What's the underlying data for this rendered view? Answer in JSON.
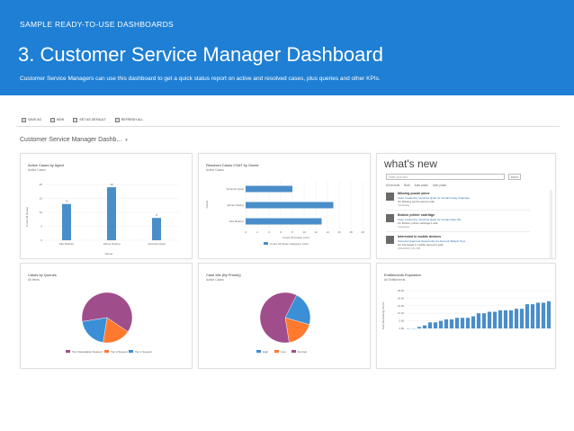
{
  "banner": {
    "eyebrow": "SAMPLE READY-TO-USE DASHBOARDS",
    "title": "3. Customer Service Manager Dashboard",
    "subtitle": "Customer Service Managers can use this dashboard to get a quick status report on active and resolved cases, plus queries and other KPIs."
  },
  "colors": {
    "banner": "#1e7fd4",
    "bar": "#4a8ec9",
    "tier2": "#ff7a2e",
    "tier3": "#a04d8c",
    "tier1": "#3b8fd6",
    "high": "#3b8fd6",
    "low": "#ff7a2e",
    "normal": "#a04d8c"
  },
  "toolbar": {
    "items": [
      {
        "label": "SAVE AS",
        "icon": "save-icon"
      },
      {
        "label": "NEW",
        "icon": "new-icon"
      },
      {
        "label": "SET AS DEFAULT",
        "icon": "default-icon"
      },
      {
        "label": "REFRESH ALL",
        "icon": "refresh-icon"
      }
    ]
  },
  "dashboard": {
    "title": "Customer Service Manager Dashb...",
    "caret": "▾"
  },
  "charts": {
    "agent": {
      "title": "Active Cases by Agent",
      "subtitle": "Active Cases",
      "ylabel": "Count:All (Case)",
      "xlabel": "Owner",
      "categories": [
        "Alitc Bellvier",
        "Jahnie Nuiting",
        "Veronica Quek"
      ],
      "values": [
        13,
        19,
        8
      ],
      "ylim": [
        0,
        20
      ],
      "yticks": [
        "20",
        "15",
        "10",
        "5",
        "0"
      ]
    },
    "resolved": {
      "title": "Resolved Cases CSAT by Owner",
      "subtitle": "Active Cases",
      "ylabel": "Owner",
      "xlabel": "Count:All (Case) (min)",
      "categories": [
        "Veronica Quek",
        "Jahnie Nuiting",
        "Alitc Bellvier"
      ],
      "values": [
        8,
        15,
        13
      ],
      "xlim": [
        0,
        20
      ],
      "xticks": [
        "0",
        "2",
        "4",
        "6",
        "8",
        "10",
        "12",
        "14",
        "16",
        "18",
        "20"
      ],
      "legend": "Count:All (Case Category) (min)"
    },
    "queues": {
      "title": "Cases by Queues",
      "subtitle": "All Items",
      "legend": [
        "Tier 3 Escalation Support",
        "Tier 2 Support",
        "Tier 1 Support"
      ]
    },
    "priority": {
      "title": "Case Mix (By Priority)",
      "subtitle": "Active Cases",
      "legend": [
        "High",
        "Low",
        "Normal"
      ]
    },
    "entitlements": {
      "title": "Entitlements Expiration",
      "subtitle": "All Entitlements",
      "ylabel": "Sum:Remaining Terms",
      "yticks": [
        "25.00",
        "20.00",
        "15.00",
        "10.00",
        "5.00",
        "0.00"
      ],
      "ylim": [
        0,
        25
      ]
    }
  },
  "chart_data": [
    {
      "type": "bar",
      "title": "Active Cases by Agent",
      "categories": [
        "Alitc Bellvier",
        "Jahnie Nuiting",
        "Veronica Quek"
      ],
      "values": [
        13,
        19,
        8
      ],
      "ylim": [
        0,
        20
      ]
    },
    {
      "type": "bar",
      "title": "Resolved Cases CSAT by Owner",
      "categories": [
        "Veronica Quek",
        "Jahnie Nuiting",
        "Alitc Bellvier"
      ],
      "values": [
        8,
        15,
        13
      ],
      "xlim": [
        0,
        20
      ]
    },
    {
      "type": "pie",
      "title": "Cases by Queues",
      "categories": [
        "Tier 3 Escalation Support",
        "Tier 2 Support",
        "Tier 1 Support"
      ],
      "values": [
        62,
        18,
        20
      ]
    },
    {
      "type": "pie",
      "title": "Case Mix (By Priority)",
      "categories": [
        "High",
        "Low",
        "Normal"
      ],
      "values": [
        22,
        18,
        60
      ]
    },
    {
      "type": "bar",
      "title": "Entitlements Expiration",
      "values": [
        0,
        0,
        1,
        2,
        4,
        4,
        5,
        6,
        6,
        7,
        7,
        7,
        8,
        10,
        10,
        11,
        11,
        12,
        12,
        12,
        13,
        13,
        16,
        16,
        17,
        17,
        18
      ],
      "ylim": [
        0,
        25
      ]
    }
  ],
  "whats_new": {
    "title": "what's new",
    "search_placeholder": "Enter your text",
    "post_label": "POST",
    "filters": [
      "All records",
      "Both",
      "Auto posts",
      "User posts"
    ],
    "items": [
      {
        "title": "Missing puzzle piece",
        "line1": "Case Created by Veronica Quek for Contact Greg Chapman.",
        "line2": "On Missing puzzle piece's wall",
        "date": "Yesterday"
      },
      {
        "title": "Broken printer cartridge",
        "line1": "Case Created by Veronica Quek for Contact Alex Wu.",
        "line2": "On Broken printer cartridge's wall",
        "date": "Yesterday"
      },
      {
        "title": "Interested in mobile devices",
        "line1": "Veronica Quek lost Opportunity for Account Tailspin Toys",
        "line2": "On Interested in mobile devices's wall",
        "date": "4/11/2016 4:31 PM"
      }
    ]
  }
}
